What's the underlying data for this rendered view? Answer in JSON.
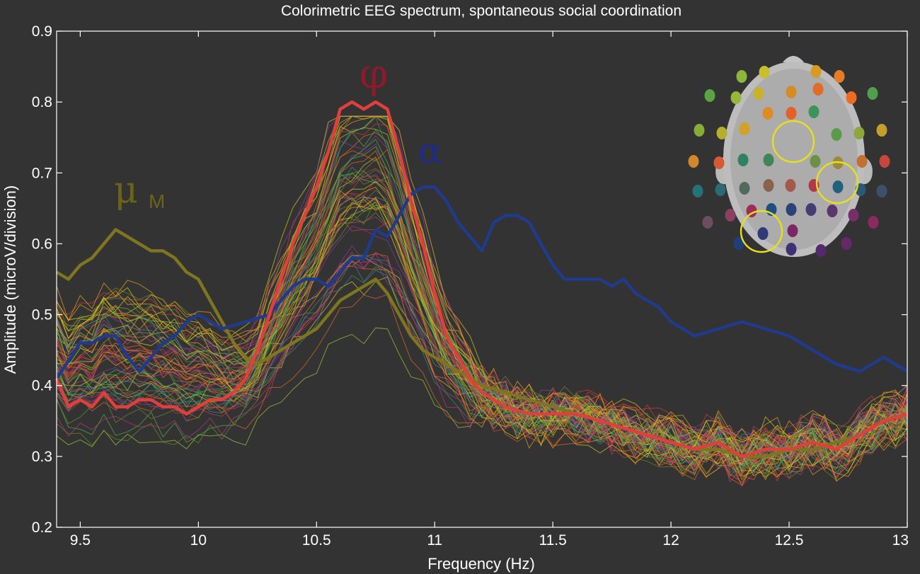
{
  "chart_data": {
    "type": "line",
    "title": "Colorimetric EEG spectrum, spontaneous social coordination",
    "xlabel": "Frequency (Hz)",
    "ylabel": "Amplitude (microV/division)",
    "xlim": [
      9.4,
      13.0
    ],
    "ylim": [
      0.2,
      0.9
    ],
    "xticks": [
      "9.5",
      "10",
      "10.5",
      "11",
      "11.5",
      "12",
      "12.5",
      "13"
    ],
    "yticks": [
      "0.2",
      "0.3",
      "0.4",
      "0.5",
      "0.6",
      "0.7",
      "0.8",
      "0.9"
    ],
    "grid": false,
    "background": "#333333",
    "annotations": [
      {
        "text": "φ",
        "color": "#8c1a2a"
      },
      {
        "text": "α",
        "color": "#1f2b8a"
      },
      {
        "text": "μ",
        "subscript": "M",
        "color": "#6b6418"
      }
    ],
    "highlighted_series": [
      {
        "label": "φ",
        "color": "#e0403c",
        "x": [
          9.4,
          9.45,
          9.5,
          9.55,
          9.6,
          9.65,
          9.7,
          9.75,
          9.8,
          9.85,
          9.9,
          9.95,
          10.0,
          10.05,
          10.1,
          10.15,
          10.2,
          10.25,
          10.3,
          10.35,
          10.4,
          10.45,
          10.5,
          10.55,
          10.6,
          10.65,
          10.7,
          10.75,
          10.8,
          10.85,
          10.9,
          10.95,
          11.0,
          11.05,
          11.1,
          11.15,
          11.2,
          11.3,
          11.4,
          11.5,
          11.6,
          11.7,
          11.8,
          11.9,
          12.0,
          12.1,
          12.2,
          12.3,
          12.4,
          12.5,
          12.6,
          12.7,
          12.8,
          12.9,
          13.0
        ],
        "y": [
          0.41,
          0.37,
          0.38,
          0.37,
          0.39,
          0.37,
          0.37,
          0.38,
          0.38,
          0.37,
          0.37,
          0.36,
          0.37,
          0.38,
          0.38,
          0.39,
          0.41,
          0.45,
          0.5,
          0.55,
          0.6,
          0.64,
          0.68,
          0.73,
          0.79,
          0.8,
          0.79,
          0.8,
          0.79,
          0.73,
          0.66,
          0.6,
          0.53,
          0.47,
          0.44,
          0.41,
          0.39,
          0.37,
          0.36,
          0.36,
          0.36,
          0.35,
          0.34,
          0.33,
          0.32,
          0.31,
          0.32,
          0.3,
          0.31,
          0.31,
          0.32,
          0.31,
          0.33,
          0.35,
          0.36
        ]
      },
      {
        "label": "α",
        "color": "#203a8c",
        "x": [
          9.4,
          9.5,
          9.55,
          9.6,
          9.65,
          9.7,
          9.75,
          9.8,
          9.85,
          9.9,
          9.95,
          10.0,
          10.05,
          10.1,
          10.2,
          10.3,
          10.35,
          10.4,
          10.45,
          10.5,
          10.55,
          10.6,
          10.65,
          10.7,
          10.75,
          10.8,
          10.85,
          10.9,
          10.95,
          11.0,
          11.05,
          11.1,
          11.15,
          11.2,
          11.25,
          11.3,
          11.35,
          11.4,
          11.45,
          11.5,
          11.55,
          11.6,
          11.65,
          11.7,
          11.75,
          11.8,
          11.85,
          11.9,
          11.95,
          12.0,
          12.05,
          12.1,
          12.2,
          12.3,
          12.4,
          12.5,
          12.6,
          12.7,
          12.8,
          12.9,
          13.0
        ],
        "y": [
          0.41,
          0.46,
          0.46,
          0.47,
          0.47,
          0.44,
          0.42,
          0.44,
          0.46,
          0.47,
          0.49,
          0.5,
          0.49,
          0.48,
          0.49,
          0.5,
          0.52,
          0.54,
          0.55,
          0.55,
          0.54,
          0.56,
          0.58,
          0.58,
          0.62,
          0.61,
          0.64,
          0.67,
          0.68,
          0.68,
          0.66,
          0.63,
          0.61,
          0.59,
          0.63,
          0.64,
          0.64,
          0.63,
          0.6,
          0.57,
          0.55,
          0.55,
          0.55,
          0.55,
          0.54,
          0.55,
          0.53,
          0.52,
          0.51,
          0.49,
          0.48,
          0.47,
          0.48,
          0.49,
          0.48,
          0.47,
          0.45,
          0.43,
          0.42,
          0.44,
          0.42
        ]
      },
      {
        "label": "μM",
        "color": "#7d7520",
        "x": [
          9.4,
          9.45,
          9.5,
          9.55,
          9.6,
          9.65,
          9.7,
          9.75,
          9.8,
          9.85,
          9.9,
          9.95,
          10.0,
          10.05,
          10.1,
          10.15,
          10.2,
          10.25,
          10.3,
          10.35,
          10.4,
          10.45,
          10.5,
          10.55,
          10.6,
          10.65,
          10.7,
          10.75,
          10.8,
          10.85,
          10.9,
          10.95,
          11.0,
          11.05,
          11.1,
          11.15,
          11.2,
          11.3,
          11.4,
          11.5,
          11.6,
          11.7,
          11.8,
          11.9,
          12.0,
          12.1,
          12.2,
          12.3,
          12.4,
          12.5,
          12.6,
          12.7,
          12.8,
          12.9,
          13.0
        ],
        "y": [
          0.56,
          0.55,
          0.57,
          0.58,
          0.6,
          0.62,
          0.61,
          0.6,
          0.59,
          0.59,
          0.58,
          0.56,
          0.55,
          0.52,
          0.49,
          0.46,
          0.44,
          0.43,
          0.44,
          0.45,
          0.46,
          0.47,
          0.48,
          0.5,
          0.52,
          0.53,
          0.54,
          0.55,
          0.53,
          0.5,
          0.47,
          0.45,
          0.44,
          0.43,
          0.42,
          0.41,
          0.4,
          0.39,
          0.38,
          0.37,
          0.36,
          0.35,
          0.34,
          0.33,
          0.32,
          0.31,
          0.31,
          0.3,
          0.3,
          0.31,
          0.31,
          0.32,
          0.33,
          0.35,
          0.36
        ]
      }
    ],
    "electrode_series_count": 64,
    "electrode_palette": [
      "#d9c826",
      "#e8a21f",
      "#e36b22",
      "#d63a3a",
      "#c2357a",
      "#8a3aa0",
      "#9fc93a",
      "#4fb34a",
      "#6b8a2a",
      "#3a8a7a"
    ]
  },
  "scalp_map": {
    "electrode_colors": [
      "#8ab83a",
      "#c6c02c",
      "#d89a22",
      "#e57d22",
      "#5aa543",
      "#95b73a",
      "#c8b22a",
      "#d58c24",
      "#de6d28",
      "#f06b22",
      "#4fa04c",
      "#87ad35",
      "#b3b02c",
      "#d3a028",
      "#e08a26",
      "#e36126",
      "#3c945a",
      "#5a9a49",
      "#8ea63a",
      "#c3a02a",
      "#d1882c",
      "#d45b31",
      "#2f8261",
      "#3f8558",
      "#6d8f48",
      "#9a8a3c",
      "#c46f34",
      "#c8473c",
      "#26727a",
      "#2d6b74",
      "#4f6b5e",
      "#87634a",
      "#a5594a",
      "#b13a47",
      "#22617c",
      "#2a5875",
      "#3e4f6e",
      "#6b4f60",
      "#8b3f61",
      "#a12b57",
      "#1f4f80",
      "#2b4477",
      "#423e73",
      "#5b366d",
      "#742e6a",
      "#8a2a5f",
      "#1e3f7c",
      "#2f3a78",
      "#3f3174",
      "#532a6e",
      "#662869",
      "#7a2763"
    ],
    "highlight_ring_color": "#e6e01c"
  }
}
